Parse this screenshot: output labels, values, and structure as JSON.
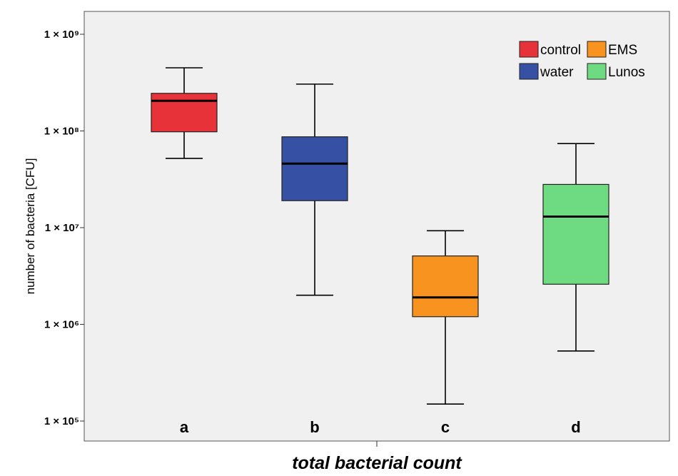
{
  "chart_data": {
    "type": "box",
    "title": "",
    "xlabel": "total bacterial count",
    "ylabel": "number of bacteria [CFU]",
    "y_scale": "log10",
    "ylim": [
      100000,
      1000000000
    ],
    "y_ticks": [
      {
        "value": 100000,
        "label": "1 × 10⁵"
      },
      {
        "value": 1000000,
        "label": "1 × 10⁶"
      },
      {
        "value": 10000000,
        "label": "1 × 10⁷"
      },
      {
        "value": 100000000,
        "label": "1 × 10⁸"
      },
      {
        "value": 1000000000,
        "label": "1 × 10⁹"
      }
    ],
    "grid": false,
    "legend_position": "top-right",
    "legend_order": [
      0,
      2,
      1,
      3
    ],
    "series": [
      {
        "name": "control",
        "label": "a",
        "color": "#e8323a",
        "whisker_low": 52000000,
        "q1": 98000000,
        "median": 205000000,
        "q3": 245000000,
        "whisker_high": 450000000
      },
      {
        "name": "water",
        "label": "b",
        "color": "#3651a3",
        "whisker_low": 2000000,
        "q1": 19000000,
        "median": 46000000,
        "q3": 87000000,
        "whisker_high": 305000000
      },
      {
        "name": "EMS",
        "label": "c",
        "color": "#f7931e",
        "whisker_low": 150000,
        "q1": 1200000,
        "median": 1900000,
        "q3": 5100000,
        "whisker_high": 9300000
      },
      {
        "name": "Lunos",
        "label": "d",
        "color": "#6edb82",
        "whisker_low": 530000,
        "q1": 2600000,
        "median": 13000000,
        "q3": 28000000,
        "whisker_high": 74000000
      }
    ]
  }
}
